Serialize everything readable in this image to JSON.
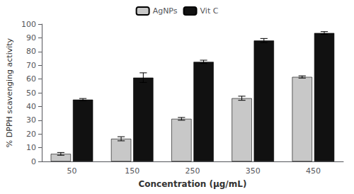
{
  "chart_data": {
    "type": "bar",
    "xlabel": "Concentration (μg/mL)",
    "ylabel": "% DPPH scavenging activity",
    "categories": [
      "50",
      "150",
      "250",
      "350",
      "450"
    ],
    "series": [
      {
        "name": "AgNPs",
        "color": "#c8c8c8",
        "values": [
          5.5,
          16.5,
          31.0,
          46.0,
          61.5
        ],
        "errors": [
          1.0,
          1.5,
          1.0,
          1.5,
          0.8
        ]
      },
      {
        "name": "Vit C",
        "color": "#111111",
        "values": [
          45.0,
          61.0,
          72.5,
          88.0,
          93.5
        ],
        "errors": [
          0.8,
          3.5,
          1.2,
          1.5,
          1.0
        ]
      }
    ],
    "ylim": [
      0,
      100
    ],
    "yticks": [
      0,
      10,
      20,
      30,
      40,
      50,
      60,
      70,
      80,
      90,
      100
    ],
    "grid": false,
    "legend": "top"
  }
}
